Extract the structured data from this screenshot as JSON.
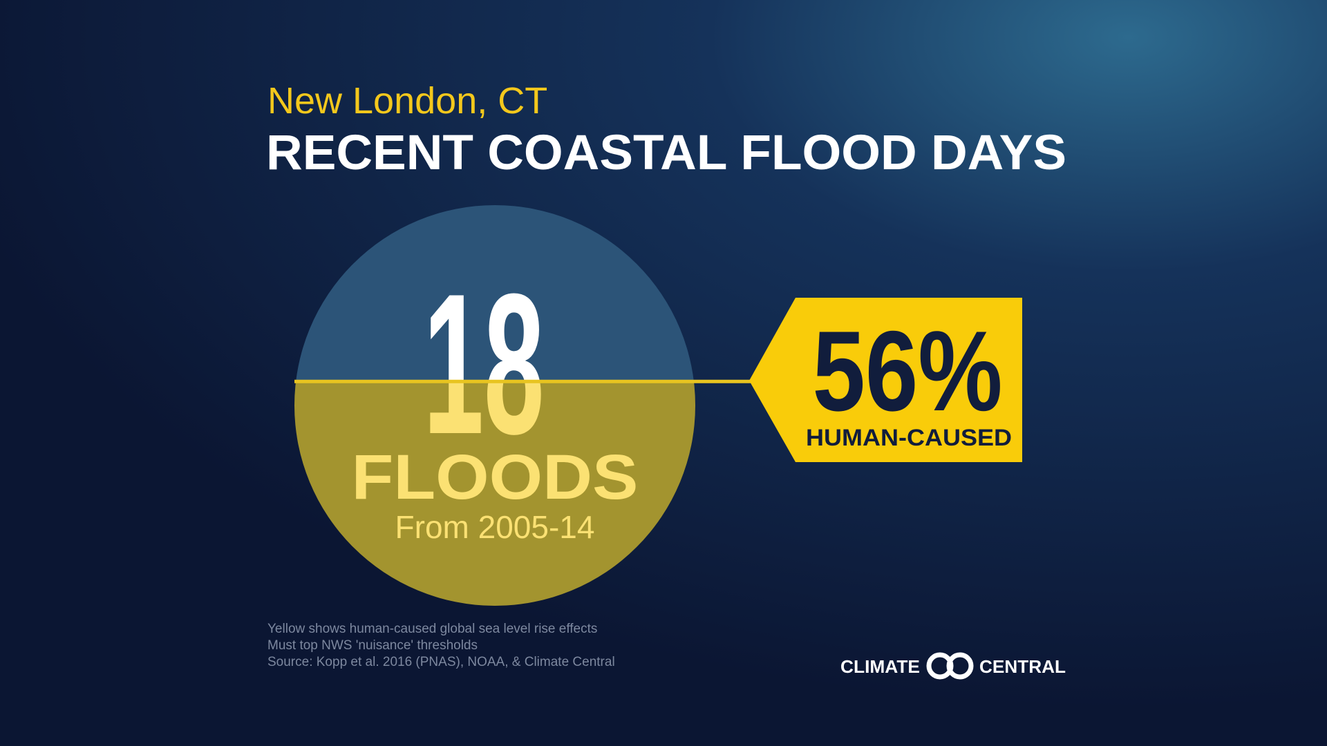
{
  "header": {
    "location": "New London, CT",
    "title": "RECENT COASTAL FLOOD  DAYS"
  },
  "circle": {
    "count": "18",
    "unit": "FLOODS",
    "period": "From 2005-14"
  },
  "callout": {
    "value": 56,
    "value_label": "56%",
    "label": "HUMAN-CAUSED"
  },
  "notes": [
    "Yellow shows human-caused global sea level rise effects",
    "Must top NWS 'nuisance' thresholds",
    "Source: Kopp et al. 2016 (PNAS), NOAA, & Climate Central"
  ],
  "logo": {
    "left": "CLIMATE",
    "right": "CENTRAL"
  }
}
